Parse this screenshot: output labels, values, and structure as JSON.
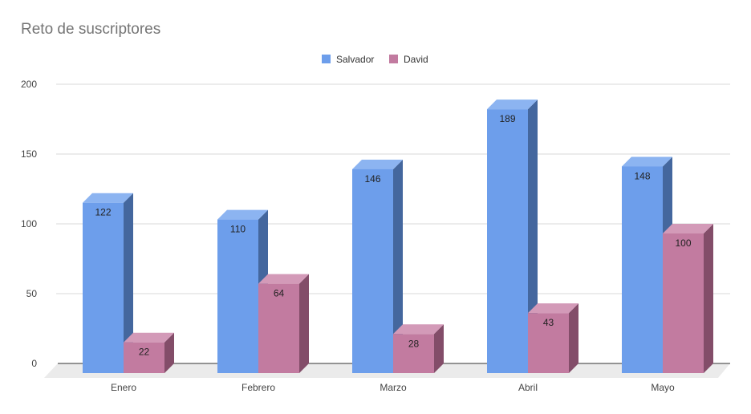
{
  "chart_data": {
    "type": "bar",
    "title": "Reto de suscriptores",
    "categories": [
      "Enero",
      "Febrero",
      "Marzo",
      "Abril",
      "Mayo"
    ],
    "series": [
      {
        "name": "Salvador",
        "values": [
          122,
          110,
          146,
          189,
          148
        ],
        "color": "#6d9eeb",
        "side_color": "#44679e",
        "top_color": "#8cb4f1"
      },
      {
        "name": "David",
        "values": [
          22,
          64,
          28,
          43,
          100
        ],
        "color": "#c27ba0",
        "side_color": "#834d69",
        "top_color": "#d39ab8"
      }
    ],
    "y_ticks": [
      0,
      50,
      100,
      150,
      200
    ],
    "ylim": [
      0,
      200
    ],
    "grid": true,
    "legend_position": "top-center",
    "three_d": true
  }
}
